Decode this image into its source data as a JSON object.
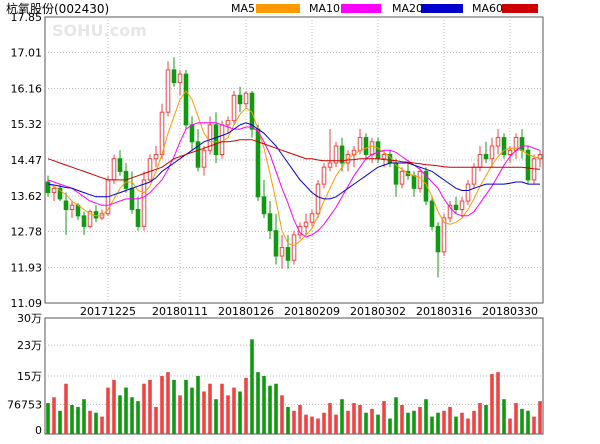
{
  "header": {
    "title": "杭氧股份(002430)",
    "legend": [
      {
        "label": "MA5",
        "color": "#ff9900"
      },
      {
        "label": "MA10",
        "color": "#ff00ff"
      },
      {
        "label": "MA20",
        "color": "#0000cc"
      },
      {
        "label": "MA60",
        "color": "#cc0000"
      }
    ]
  },
  "watermark": "SOHU.com",
  "colors": {
    "up": "#ee4444",
    "down": "#119911",
    "grid": "#bbbbbb",
    "axis": "#666666"
  },
  "chart_data": [
    {
      "type": "candlestick",
      "title": "杭氧股份(002430)",
      "ylim": [
        11.09,
        17.85
      ],
      "yticks": [
        "17.85",
        "17.01",
        "16.16",
        "15.32",
        "14.47",
        "13.62",
        "12.78",
        "11.93",
        "11.09"
      ],
      "xticks": [
        {
          "label": "20171225",
          "index": 10
        },
        {
          "label": "20180111",
          "index": 22
        },
        {
          "label": "20180126",
          "index": 33
        },
        {
          "label": "20180209",
          "index": 44
        },
        {
          "label": "20180302",
          "index": 55
        },
        {
          "label": "20180316",
          "index": 66
        },
        {
          "label": "20180330",
          "index": 77
        }
      ],
      "candles": [
        [
          13.95,
          14.1,
          13.6,
          13.7
        ],
        [
          13.7,
          13.85,
          13.5,
          13.8
        ],
        [
          13.8,
          13.9,
          13.5,
          13.55
        ],
        [
          13.5,
          13.7,
          12.7,
          13.3
        ],
        [
          13.3,
          13.5,
          13.1,
          13.4
        ],
        [
          13.4,
          13.45,
          13.05,
          13.15
        ],
        [
          13.15,
          13.25,
          12.7,
          12.9
        ],
        [
          12.9,
          13.3,
          12.85,
          13.25
        ],
        [
          13.25,
          13.4,
          13.0,
          13.1
        ],
        [
          13.1,
          13.3,
          13.05,
          13.2
        ],
        [
          13.2,
          14.1,
          13.15,
          14.0
        ],
        [
          14.0,
          14.6,
          13.9,
          14.5
        ],
        [
          14.5,
          14.7,
          14.1,
          14.2
        ],
        [
          14.2,
          14.4,
          13.7,
          13.8
        ],
        [
          13.8,
          14.2,
          13.2,
          13.3
        ],
        [
          13.3,
          13.6,
          12.8,
          12.9
        ],
        [
          12.9,
          14.2,
          12.8,
          14.0
        ],
        [
          14.0,
          14.6,
          13.95,
          14.5
        ],
        [
          14.5,
          14.8,
          14.3,
          14.6
        ],
        [
          14.6,
          15.8,
          14.5,
          15.6
        ],
        [
          15.6,
          16.8,
          15.5,
          16.6
        ],
        [
          16.6,
          16.9,
          16.2,
          16.3
        ],
        [
          16.3,
          16.6,
          16.0,
          16.5
        ],
        [
          16.5,
          16.6,
          15.2,
          15.3
        ],
        [
          15.3,
          15.5,
          14.7,
          14.9
        ],
        [
          14.9,
          15.2,
          14.2,
          14.3
        ],
        [
          14.3,
          14.8,
          14.1,
          14.7
        ],
        [
          14.7,
          15.5,
          14.6,
          15.3
        ],
        [
          15.3,
          15.6,
          14.4,
          14.6
        ],
        [
          14.6,
          15.4,
          14.5,
          15.3
        ],
        [
          15.3,
          15.5,
          15.1,
          15.4
        ],
        [
          15.4,
          16.1,
          15.3,
          16.0
        ],
        [
          16.0,
          16.2,
          15.6,
          15.8
        ],
        [
          15.8,
          16.1,
          15.7,
          16.05
        ],
        [
          16.05,
          16.1,
          15.0,
          15.2
        ],
        [
          15.2,
          15.3,
          13.5,
          13.6
        ],
        [
          13.6,
          14.0,
          13.1,
          13.2
        ],
        [
          13.2,
          13.5,
          12.6,
          12.8
        ],
        [
          12.8,
          13.2,
          12.0,
          12.2
        ],
        [
          12.2,
          12.7,
          11.9,
          12.4
        ],
        [
          12.4,
          12.7,
          11.9,
          12.1
        ],
        [
          12.1,
          12.8,
          12.0,
          12.7
        ],
        [
          12.7,
          13.0,
          12.6,
          12.9
        ],
        [
          12.9,
          13.2,
          12.7,
          13.0
        ],
        [
          13.0,
          13.3,
          12.9,
          13.2
        ],
        [
          13.2,
          14.0,
          13.1,
          13.9
        ],
        [
          13.9,
          14.4,
          13.8,
          14.3
        ],
        [
          14.3,
          15.2,
          14.2,
          14.4
        ],
        [
          14.4,
          14.9,
          14.3,
          14.8
        ],
        [
          14.8,
          15.0,
          14.2,
          14.4
        ],
        [
          14.4,
          14.7,
          14.2,
          14.6
        ],
        [
          14.6,
          14.8,
          14.3,
          14.7
        ],
        [
          14.7,
          15.2,
          14.6,
          15.0
        ],
        [
          15.0,
          15.1,
          14.5,
          14.6
        ],
        [
          14.6,
          15.0,
          14.4,
          14.9
        ],
        [
          14.9,
          15.0,
          14.4,
          14.5
        ],
        [
          14.5,
          14.7,
          14.3,
          14.6
        ],
        [
          14.6,
          14.7,
          14.3,
          14.4
        ],
        [
          14.4,
          14.5,
          13.6,
          13.9
        ],
        [
          13.9,
          14.3,
          13.8,
          14.2
        ],
        [
          14.2,
          14.4,
          14.0,
          14.1
        ],
        [
          14.1,
          14.2,
          13.6,
          13.8
        ],
        [
          13.8,
          14.3,
          13.7,
          14.2
        ],
        [
          14.2,
          14.3,
          13.4,
          13.5
        ],
        [
          13.5,
          13.6,
          12.8,
          12.9
        ],
        [
          12.9,
          13.0,
          11.7,
          12.3
        ],
        [
          12.3,
          13.2,
          12.2,
          13.1
        ],
        [
          13.1,
          13.5,
          13.0,
          13.4
        ],
        [
          13.4,
          13.6,
          13.2,
          13.3
        ],
        [
          13.3,
          13.6,
          13.1,
          13.5
        ],
        [
          13.5,
          14.0,
          13.4,
          13.9
        ],
        [
          13.9,
          14.4,
          13.8,
          14.3
        ],
        [
          14.3,
          14.8,
          14.2,
          14.6
        ],
        [
          14.6,
          14.9,
          14.4,
          14.5
        ],
        [
          14.5,
          15.0,
          14.3,
          14.8
        ],
        [
          14.8,
          15.2,
          14.6,
          15.0
        ],
        [
          15.0,
          15.1,
          14.5,
          14.6
        ],
        [
          14.6,
          14.8,
          14.4,
          14.7
        ],
        [
          14.7,
          15.1,
          14.5,
          15.0
        ],
        [
          15.0,
          15.2,
          14.5,
          14.7
        ],
        [
          14.7,
          14.8,
          13.9,
          14.0
        ],
        [
          14.0,
          14.6,
          13.9,
          14.5
        ],
        [
          14.5,
          14.7,
          14.3,
          14.6
        ]
      ],
      "series": [
        {
          "name": "MA5",
          "color": "#ff9900",
          "values": [
            13.9,
            13.85,
            13.75,
            13.65,
            13.5,
            13.4,
            13.3,
            13.2,
            13.15,
            13.15,
            13.3,
            13.55,
            13.8,
            13.95,
            13.95,
            13.75,
            13.7,
            13.85,
            14.2,
            14.6,
            15.1,
            15.5,
            15.9,
            16.1,
            15.9,
            15.5,
            15.1,
            14.9,
            14.9,
            14.9,
            15.0,
            15.3,
            15.55,
            15.7,
            15.6,
            15.2,
            14.75,
            14.15,
            13.5,
            12.8,
            12.5,
            12.45,
            12.55,
            12.7,
            12.85,
            13.15,
            13.5,
            13.8,
            14.1,
            14.3,
            14.5,
            14.6,
            14.7,
            14.75,
            14.8,
            14.75,
            14.65,
            14.55,
            14.35,
            14.25,
            14.15,
            14.1,
            14.05,
            13.9,
            13.6,
            13.25,
            13.0,
            12.95,
            13.0,
            13.1,
            13.3,
            13.55,
            13.85,
            14.1,
            14.35,
            14.55,
            14.7,
            14.75,
            14.75,
            14.7,
            14.6,
            14.55,
            14.5
          ]
        },
        {
          "name": "MA10",
          "color": "#ff00ff",
          "values": [
            14.0,
            13.95,
            13.9,
            13.85,
            13.8,
            13.7,
            13.6,
            13.5,
            13.45,
            13.4,
            13.4,
            13.45,
            13.5,
            13.55,
            13.55,
            13.55,
            13.6,
            13.7,
            13.85,
            14.0,
            14.25,
            14.55,
            14.9,
            15.2,
            15.3,
            15.35,
            15.35,
            15.35,
            15.35,
            15.3,
            15.25,
            15.2,
            15.2,
            15.25,
            15.25,
            15.15,
            14.9,
            14.6,
            14.2,
            13.8,
            13.45,
            13.05,
            12.75,
            12.65,
            12.7,
            12.8,
            12.95,
            13.15,
            13.35,
            13.6,
            13.85,
            14.1,
            14.3,
            14.5,
            14.6,
            14.65,
            14.7,
            14.7,
            14.65,
            14.55,
            14.45,
            14.35,
            14.25,
            14.1,
            13.95,
            13.8,
            13.55,
            13.35,
            13.2,
            13.15,
            13.15,
            13.25,
            13.45,
            13.65,
            13.85,
            14.1,
            14.35,
            14.55,
            14.7,
            14.8,
            14.8,
            14.75,
            14.7
          ]
        },
        {
          "name": "MA20",
          "color": "#0000cc",
          "values": [
            13.9,
            13.88,
            13.85,
            13.82,
            13.8,
            13.75,
            13.7,
            13.65,
            13.6,
            13.6,
            13.6,
            13.65,
            13.7,
            13.75,
            13.8,
            13.85,
            13.9,
            13.95,
            14.05,
            14.2,
            14.3,
            14.4,
            14.5,
            14.6,
            14.7,
            14.8,
            14.9,
            14.95,
            15.0,
            15.05,
            15.1,
            15.2,
            15.3,
            15.35,
            15.3,
            15.2,
            15.1,
            14.95,
            14.8,
            14.6,
            14.4,
            14.2,
            14.0,
            13.85,
            13.7,
            13.6,
            13.55,
            13.55,
            13.6,
            13.7,
            13.8,
            13.9,
            14.0,
            14.1,
            14.2,
            14.3,
            14.35,
            14.4,
            14.4,
            14.4,
            14.4,
            14.35,
            14.3,
            14.25,
            14.2,
            14.1,
            14.0,
            13.9,
            13.8,
            13.75,
            13.75,
            13.8,
            13.85,
            13.9,
            13.9,
            13.9,
            13.9,
            13.92,
            13.95,
            13.95,
            13.9,
            13.9,
            13.9
          ]
        },
        {
          "name": "MA60",
          "color": "#cc0000",
          "values": [
            14.5,
            14.45,
            14.4,
            14.35,
            14.3,
            14.25,
            14.2,
            14.15,
            14.1,
            14.05,
            14.0,
            14.0,
            14.0,
            14.0,
            14.05,
            14.1,
            14.15,
            14.2,
            14.25,
            14.3,
            14.4,
            14.5,
            14.55,
            14.6,
            14.65,
            14.7,
            14.75,
            14.8,
            14.85,
            14.9,
            14.9,
            14.92,
            14.95,
            14.95,
            14.95,
            14.9,
            14.85,
            14.8,
            14.75,
            14.7,
            14.65,
            14.6,
            14.55,
            14.5,
            14.5,
            14.47,
            14.45,
            14.45,
            14.45,
            14.45,
            14.47,
            14.48,
            14.5,
            14.5,
            14.5,
            14.5,
            14.48,
            14.47,
            14.45,
            14.43,
            14.42,
            14.4,
            14.38,
            14.36,
            14.35,
            14.33,
            14.31,
            14.3,
            14.3,
            14.3,
            14.3,
            14.3,
            14.3,
            14.3,
            14.3,
            14.3,
            14.3,
            14.3,
            14.3,
            14.3,
            14.28,
            14.26,
            14.25
          ]
        }
      ]
    },
    {
      "type": "bar",
      "ylim": [
        0,
        300000
      ],
      "yticks": [
        "30万",
        "23万",
        "15万",
        "76753",
        "0"
      ],
      "ytick_values": [
        300000,
        230000,
        150000,
        76753,
        0
      ],
      "values": [
        80000,
        95000,
        60000,
        130000,
        75000,
        70000,
        90000,
        60000,
        55000,
        45000,
        120000,
        140000,
        100000,
        120000,
        95000,
        85000,
        130000,
        140000,
        70000,
        150000,
        160000,
        140000,
        100000,
        140000,
        120000,
        150000,
        110000,
        130000,
        90000,
        130000,
        100000,
        120000,
        110000,
        145000,
        245000,
        160000,
        150000,
        125000,
        130000,
        100000,
        70000,
        60000,
        75000,
        50000,
        45000,
        40000,
        55000,
        80000,
        50000,
        90000,
        60000,
        80000,
        75000,
        55000,
        65000,
        50000,
        85000,
        40000,
        95000,
        75000,
        55000,
        60000,
        70000,
        90000,
        45000,
        55000,
        60000,
        70000,
        45000,
        55000,
        40000,
        60000,
        80000,
        75000,
        155000,
        160000,
        90000,
        40000,
        80000,
        65000,
        60000,
        45000,
        85000
      ],
      "up": [
        false,
        true,
        false,
        true,
        false,
        false,
        false,
        true,
        false,
        true,
        true,
        true,
        false,
        false,
        false,
        false,
        true,
        true,
        true,
        true,
        true,
        false,
        true,
        false,
        false,
        false,
        true,
        true,
        false,
        true,
        true,
        true,
        false,
        true,
        false,
        false,
        false,
        false,
        false,
        true,
        false,
        true,
        true,
        true,
        true,
        true,
        true,
        true,
        true,
        false,
        true,
        true,
        true,
        false,
        true,
        false,
        true,
        false,
        false,
        true,
        false,
        false,
        true,
        false,
        false,
        false,
        true,
        true,
        false,
        true,
        true,
        true,
        true,
        false,
        true,
        true,
        false,
        true,
        true,
        false,
        false,
        true,
        true
      ]
    }
  ]
}
